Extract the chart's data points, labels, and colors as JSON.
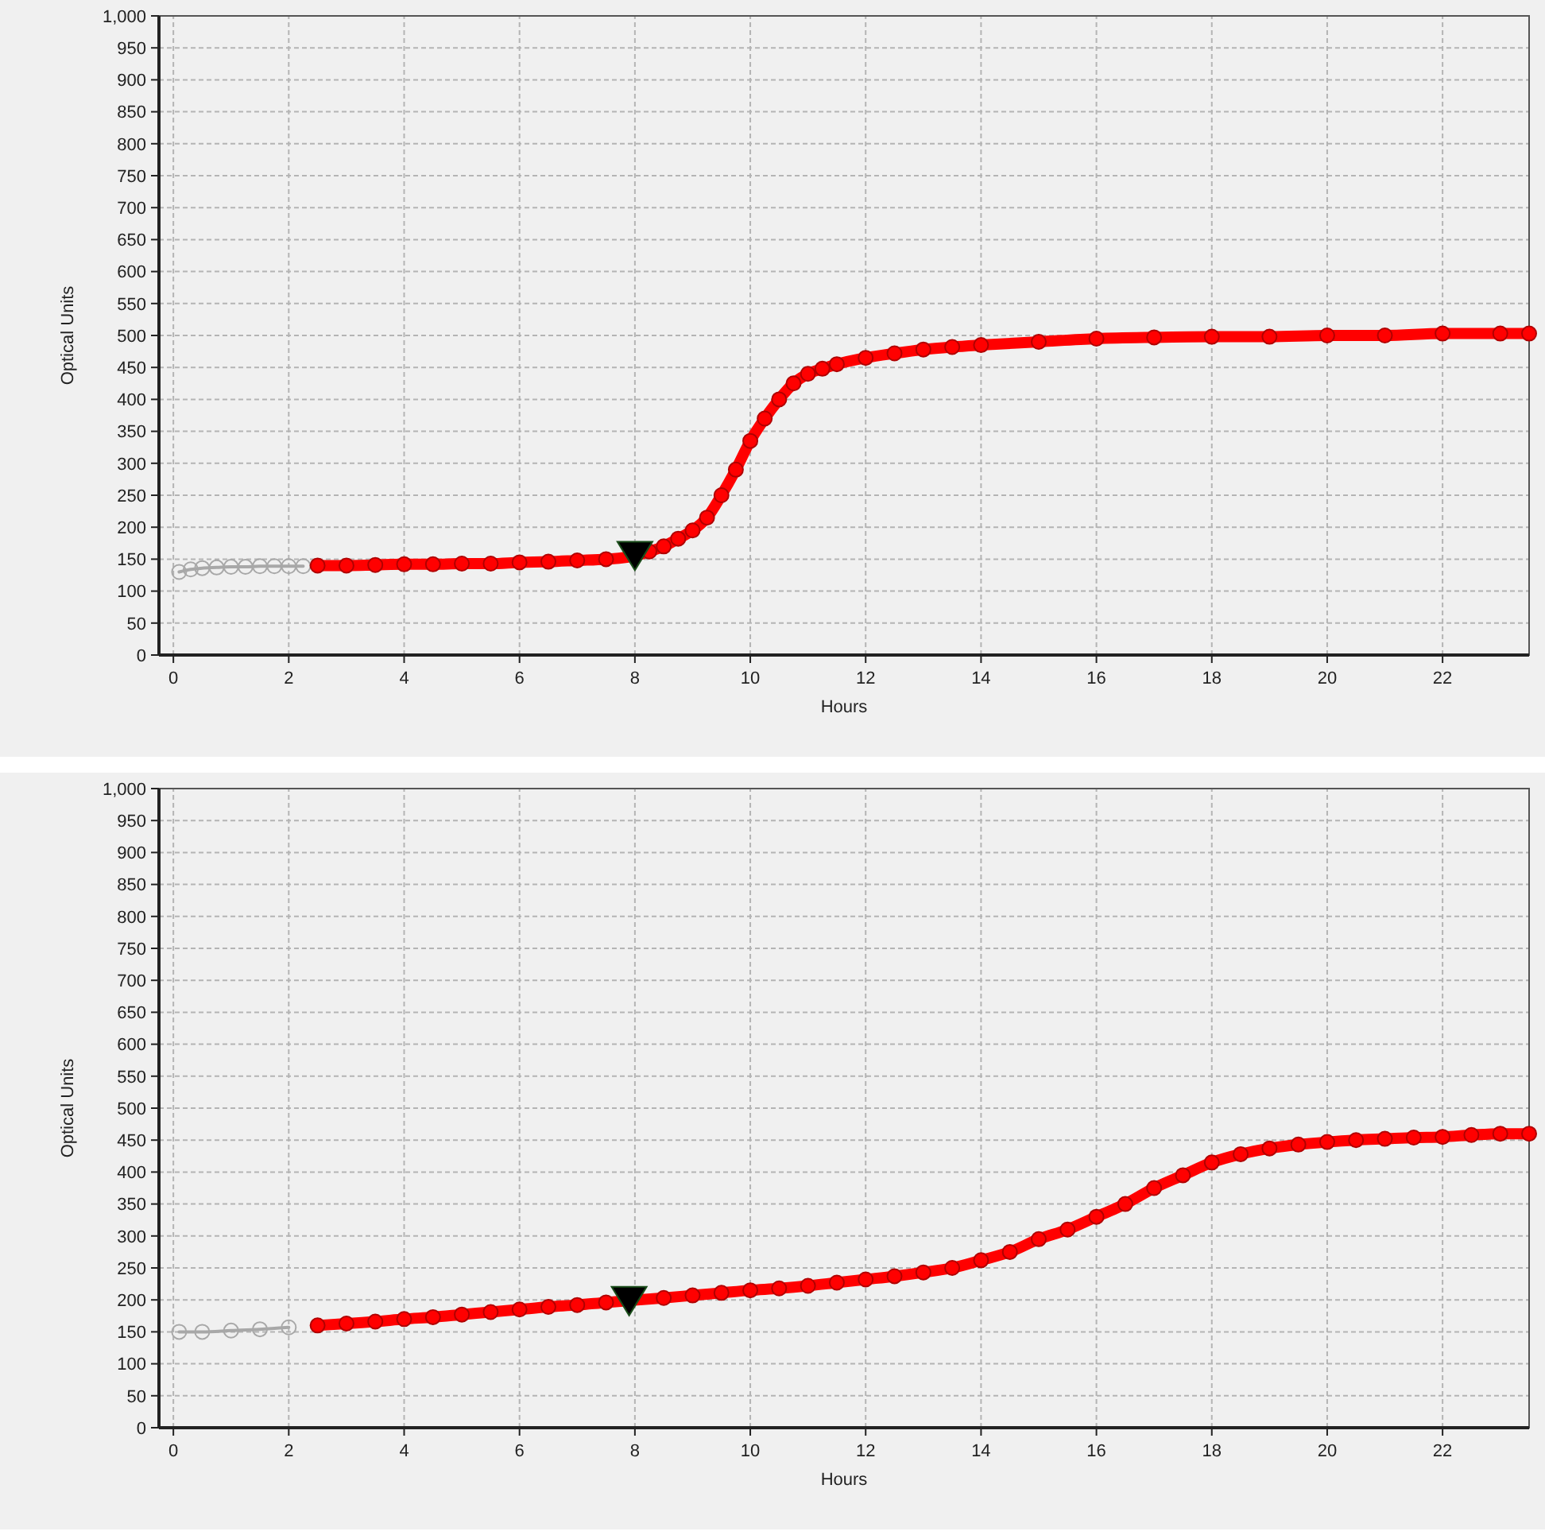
{
  "chart_data": [
    {
      "type": "line",
      "xlabel": "Hours",
      "ylabel": "Optical Units",
      "xlim": [
        -0.25,
        23.5
      ],
      "ylim": [
        0,
        1000
      ],
      "xticks": [
        0,
        2,
        4,
        6,
        8,
        10,
        12,
        14,
        16,
        18,
        20,
        22
      ],
      "yticks": [
        0,
        50,
        100,
        150,
        200,
        250,
        300,
        350,
        400,
        450,
        500,
        550,
        600,
        650,
        700,
        750,
        800,
        850,
        900,
        950,
        {
          "value": 1000,
          "label": "1,000"
        }
      ],
      "grid": true,
      "series": [
        {
          "color": "#a8a8a8",
          "marker": "circle",
          "x": [
            0.1,
            0.3,
            0.5,
            0.75,
            1,
            1.25,
            1.5,
            1.75,
            2,
            2.25
          ],
          "values": [
            130,
            134,
            136,
            137,
            138,
            138,
            139,
            139,
            139,
            139
          ]
        },
        {
          "color": "#ff0000",
          "marker": "circle",
          "x": [
            2.5,
            3,
            3.5,
            4,
            4.5,
            5,
            5.5,
            6,
            6.5,
            7,
            7.5,
            8,
            8.25,
            8.5,
            8.75,
            9,
            9.25,
            9.5,
            9.75,
            10,
            10.25,
            10.5,
            10.75,
            11,
            11.25,
            11.5,
            12,
            12.5,
            13,
            13.5,
            14,
            15,
            16,
            17,
            18,
            19,
            20,
            21,
            22,
            23,
            23.5
          ],
          "values": [
            140,
            140,
            141,
            142,
            142,
            143,
            143,
            145,
            146,
            148,
            150,
            155,
            162,
            170,
            182,
            195,
            215,
            250,
            290,
            335,
            370,
            400,
            425,
            440,
            448,
            455,
            465,
            472,
            478,
            482,
            485,
            490,
            495,
            497,
            498,
            498,
            500,
            500,
            503,
            503,
            503
          ]
        },
        {
          "type": "scatter",
          "color": "#000000",
          "marker": "triangle",
          "x": [
            8
          ],
          "values": [
            155
          ]
        }
      ]
    },
    {
      "type": "line",
      "xlabel": "Hours",
      "ylabel": "Optical Units",
      "xlim": [
        -0.25,
        23.5
      ],
      "ylim": [
        0,
        1000
      ],
      "xticks": [
        0,
        2,
        4,
        6,
        8,
        10,
        12,
        14,
        16,
        18,
        20,
        22
      ],
      "yticks": [
        0,
        50,
        100,
        150,
        200,
        250,
        300,
        350,
        400,
        450,
        500,
        550,
        600,
        650,
        700,
        750,
        800,
        850,
        900,
        950,
        {
          "value": 1000,
          "label": "1,000"
        }
      ],
      "grid": true,
      "series": [
        {
          "color": "#a8a8a8",
          "marker": "circle",
          "x": [
            0.1,
            0.5,
            1,
            1.5,
            2
          ],
          "values": [
            150,
            150,
            152,
            154,
            157
          ]
        },
        {
          "color": "#ff0000",
          "marker": "circle",
          "x": [
            2.5,
            3,
            3.5,
            4,
            4.5,
            5,
            5.5,
            6,
            6.5,
            7,
            7.5,
            8.5,
            9,
            9.5,
            10,
            10.5,
            11,
            11.5,
            12,
            12.5,
            13,
            13.5,
            14,
            14.5,
            15,
            15.5,
            16,
            16.5,
            17,
            17.5,
            18,
            18.5,
            19,
            19.5,
            20,
            20.5,
            21,
            21.5,
            22,
            22.5,
            23,
            23.5
          ],
          "values": [
            160,
            163,
            166,
            170,
            173,
            177,
            181,
            185,
            189,
            192,
            196,
            203,
            207,
            211,
            215,
            218,
            222,
            227,
            232,
            237,
            243,
            250,
            262,
            275,
            295,
            310,
            330,
            350,
            375,
            395,
            415,
            428,
            437,
            443,
            447,
            450,
            452,
            454,
            455,
            458,
            460,
            460
          ]
        },
        {
          "type": "scatter",
          "color": "#000000",
          "marker": "triangle",
          "x": [
            7.9
          ],
          "values": [
            198
          ]
        }
      ]
    }
  ]
}
